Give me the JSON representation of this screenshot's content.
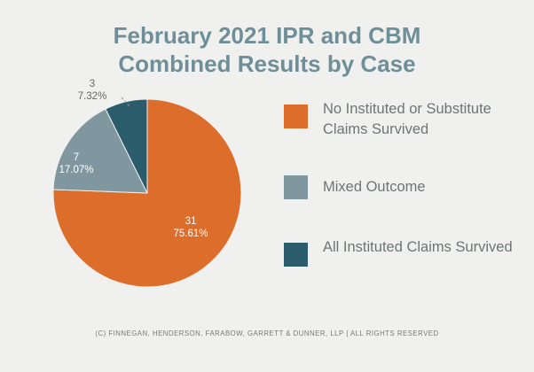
{
  "chart_data": {
    "type": "pie",
    "title_line1": "February 2021 IPR and CBM",
    "title_line2": "Combined Results by Case",
    "slices": [
      {
        "label": "No Instituted or Substitute Claims Survived",
        "count": "31",
        "percent": "75.61%",
        "value": 31,
        "color": "#dc6d2b"
      },
      {
        "label": "Mixed Outcome",
        "count": "7",
        "percent": "17.07%",
        "value": 7,
        "color": "#8097a0"
      },
      {
        "label": "All Instituted Claims Survived",
        "count": "3",
        "percent": "7.32%",
        "value": 3,
        "color": "#2a5c6c"
      }
    ],
    "start_angle_deg": 0,
    "direction": "clockwise",
    "legend_position": "right"
  },
  "footer": "(C) FINNEGAN, HENDERSON, FARABOW, GARRETT & DUNNER, LLP | ALL RIGHTS RESERVED"
}
